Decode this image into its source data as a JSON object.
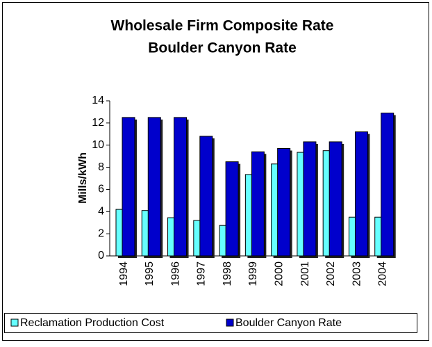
{
  "chart_data": {
    "type": "bar",
    "title": [
      "Wholesale Firm Composite Rate",
      "Boulder Canyon Rate"
    ],
    "y_label": "Mills/kWh",
    "categories": [
      "1994",
      "1995",
      "1996",
      "1997",
      "1998",
      "1999",
      "2000",
      "2001",
      "2002",
      "2003",
      "2004"
    ],
    "series": [
      {
        "name": "Reclamation Production Cost",
        "color": "#66ffff",
        "values": [
          4.2,
          4.1,
          3.45,
          3.2,
          2.75,
          7.35,
          8.3,
          9.35,
          9.5,
          3.5,
          3.5
        ]
      },
      {
        "name": "Boulder Canyon Rate",
        "color": "#0000cc",
        "values": [
          12.5,
          12.5,
          12.5,
          10.8,
          8.5,
          9.4,
          9.7,
          10.3,
          10.3,
          11.2,
          12.9
        ]
      }
    ],
    "ylim": [
      0,
      14
    ],
    "yticks": [
      0,
      2,
      4,
      6,
      8,
      10,
      12,
      14
    ],
    "legend": "bottom"
  }
}
